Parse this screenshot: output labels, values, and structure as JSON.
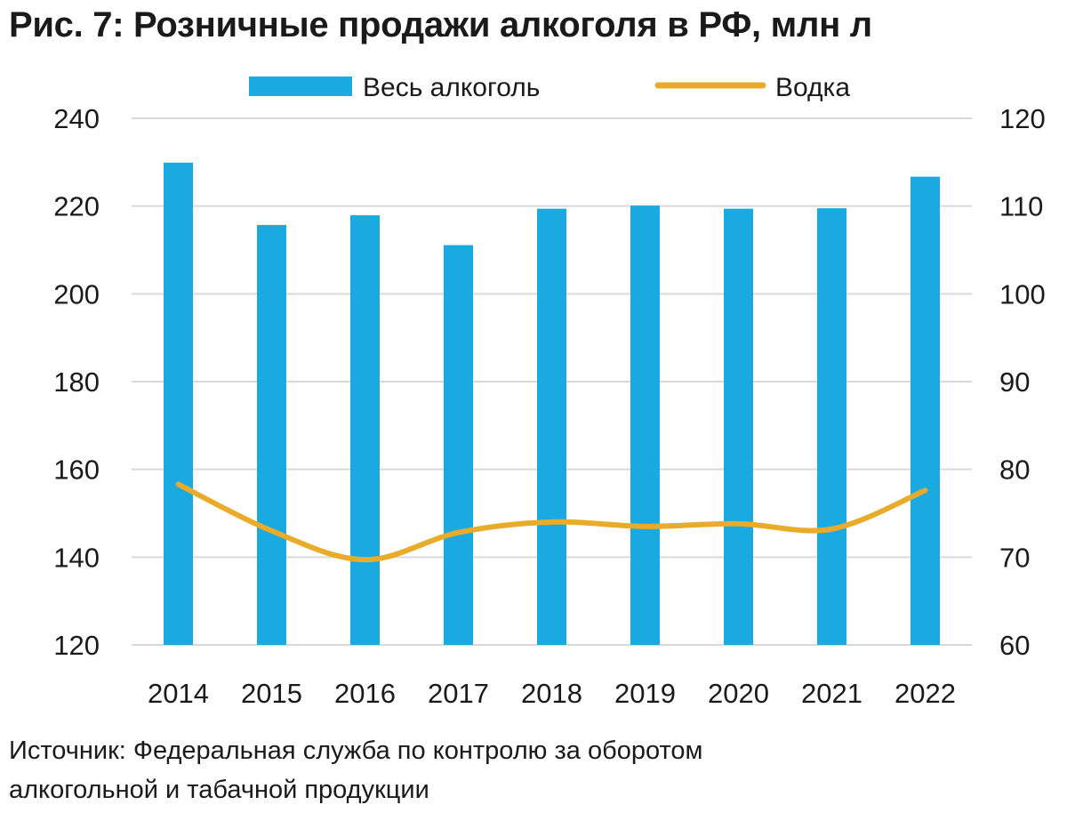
{
  "title": "Рис. 7: Розничные продажи алкоголя в РФ, млн л",
  "source_lines": [
    "Источник: Федеральная служба по контролю за оборотом",
    "алкогольной и табачной продукции"
  ],
  "colors": {
    "bar": "#1ba9e1",
    "line": "#e9ac2a",
    "grid": "#d9d9d9",
    "text": "#1a1a1a"
  },
  "chart_data": {
    "type": "bar",
    "title": "Рис. 7: Розничные продажи алкоголя в РФ, млн л",
    "categories": [
      "2014",
      "2015",
      "2016",
      "2017",
      "2018",
      "2019",
      "2020",
      "2021",
      "2022"
    ],
    "series": [
      {
        "name": "Весь алкоголь",
        "type": "bar",
        "axis": "left",
        "values": [
          229.9,
          215.7,
          217.9,
          211.1,
          219.4,
          220.1,
          219.4,
          219.5,
          226.7
        ]
      },
      {
        "name": "Водка",
        "type": "line",
        "axis": "right",
        "values": [
          78.3,
          73.0,
          69.7,
          72.8,
          74.0,
          73.5,
          73.8,
          73.2,
          77.6
        ]
      }
    ],
    "y_left": {
      "min": 120,
      "max": 240,
      "ticks": [
        120,
        140,
        160,
        180,
        200,
        220,
        240
      ]
    },
    "y_right": {
      "min": 60,
      "max": 120,
      "ticks": [
        60,
        70,
        80,
        90,
        100,
        110,
        120
      ]
    },
    "grid": true,
    "legend_position": "top"
  }
}
